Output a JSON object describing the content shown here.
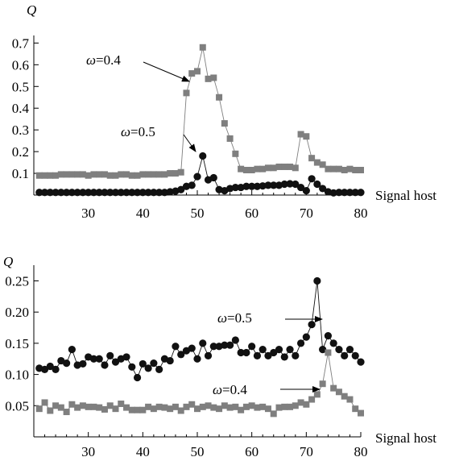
{
  "chart_data": [
    {
      "type": "line",
      "ylabel": "Q",
      "xlabel": "Signal host",
      "xlim": [
        20,
        80
      ],
      "ylim": [
        0,
        0.72
      ],
      "xticks": [
        30,
        40,
        50,
        60,
        70,
        80
      ],
      "yticks": [
        0.1,
        0.2,
        0.3,
        0.4,
        0.5,
        0.6,
        0.7
      ],
      "ytick_labels": [
        "0.1",
        "0.2",
        "0.3",
        "0.4",
        "0.5",
        "0.6",
        "0.7"
      ],
      "x": [
        21,
        22,
        23,
        24,
        25,
        26,
        27,
        28,
        29,
        30,
        31,
        32,
        33,
        34,
        35,
        36,
        37,
        38,
        39,
        40,
        41,
        42,
        43,
        44,
        45,
        46,
        47,
        48,
        49,
        50,
        51,
        52,
        53,
        54,
        55,
        56,
        57,
        58,
        59,
        60,
        61,
        62,
        63,
        64,
        65,
        66,
        67,
        68,
        69,
        70,
        71,
        72,
        73,
        74,
        75,
        76,
        77,
        78,
        79,
        80
      ],
      "series": [
        {
          "marker": "square",
          "color": "#7f7f7f",
          "values": [
            0.09,
            0.09,
            0.09,
            0.09,
            0.095,
            0.095,
            0.095,
            0.095,
            0.095,
            0.09,
            0.095,
            0.095,
            0.095,
            0.09,
            0.09,
            0.095,
            0.095,
            0.09,
            0.09,
            0.095,
            0.095,
            0.095,
            0.095,
            0.095,
            0.1,
            0.1,
            0.105,
            0.47,
            0.56,
            0.57,
            0.68,
            0.535,
            0.54,
            0.45,
            0.33,
            0.26,
            0.19,
            0.12,
            0.115,
            0.115,
            0.12,
            0.12,
            0.125,
            0.125,
            0.13,
            0.13,
            0.13,
            0.125,
            0.28,
            0.27,
            0.17,
            0.15,
            0.14,
            0.12,
            0.12,
            0.12,
            0.115,
            0.12,
            0.115,
            0.115
          ],
          "annotation": "ω=0.4"
        },
        {
          "marker": "circle",
          "color": "#111111",
          "values": [
            0.012,
            0.012,
            0.012,
            0.012,
            0.012,
            0.012,
            0.012,
            0.012,
            0.012,
            0.012,
            0.012,
            0.012,
            0.012,
            0.012,
            0.012,
            0.012,
            0.012,
            0.012,
            0.012,
            0.012,
            0.012,
            0.012,
            0.012,
            0.012,
            0.015,
            0.018,
            0.025,
            0.04,
            0.045,
            0.085,
            0.18,
            0.07,
            0.08,
            0.025,
            0.02,
            0.03,
            0.035,
            0.035,
            0.04,
            0.04,
            0.04,
            0.042,
            0.045,
            0.045,
            0.045,
            0.05,
            0.052,
            0.05,
            0.035,
            0.02,
            0.075,
            0.05,
            0.03,
            0.015,
            0.01,
            0.012,
            0.012,
            0.012,
            0.012,
            0.012
          ],
          "annotation": "ω=0.5"
        }
      ]
    },
    {
      "type": "line",
      "ylabel": "Q",
      "xlabel": "Signal host",
      "xlim": [
        20,
        80
      ],
      "ylim": [
        0,
        0.27
      ],
      "xticks": [
        30,
        40,
        50,
        60,
        70,
        80
      ],
      "yticks": [
        0.05,
        0.1,
        0.15,
        0.2,
        0.25
      ],
      "ytick_labels": [
        "0.05",
        "0.10",
        "0.15",
        "0.20",
        "0.25"
      ],
      "x": [
        21,
        22,
        23,
        24,
        25,
        26,
        27,
        28,
        29,
        30,
        31,
        32,
        33,
        34,
        35,
        36,
        37,
        38,
        39,
        40,
        41,
        42,
        43,
        44,
        45,
        46,
        47,
        48,
        49,
        50,
        51,
        52,
        53,
        54,
        55,
        56,
        57,
        58,
        59,
        60,
        61,
        62,
        63,
        64,
        65,
        66,
        67,
        68,
        69,
        70,
        71,
        72,
        73,
        74,
        75,
        76,
        77,
        78,
        79,
        80
      ],
      "series": [
        {
          "marker": "circle",
          "color": "#111111",
          "values": [
            0.11,
            0.108,
            0.113,
            0.108,
            0.122,
            0.118,
            0.14,
            0.115,
            0.117,
            0.128,
            0.125,
            0.125,
            0.115,
            0.13,
            0.12,
            0.125,
            0.128,
            0.112,
            0.095,
            0.117,
            0.11,
            0.118,
            0.108,
            0.125,
            0.122,
            0.145,
            0.132,
            0.138,
            0.142,
            0.125,
            0.15,
            0.13,
            0.145,
            0.145,
            0.147,
            0.147,
            0.155,
            0.135,
            0.135,
            0.145,
            0.13,
            0.14,
            0.13,
            0.135,
            0.14,
            0.128,
            0.14,
            0.13,
            0.15,
            0.16,
            0.18,
            0.25,
            0.14,
            0.162,
            0.15,
            0.14,
            0.13,
            0.14,
            0.13,
            0.12
          ],
          "annotation": "ω=0.5"
        },
        {
          "marker": "square",
          "color": "#7f7f7f",
          "values": [
            0.045,
            0.055,
            0.042,
            0.05,
            0.047,
            0.04,
            0.052,
            0.047,
            0.05,
            0.048,
            0.048,
            0.047,
            0.044,
            0.05,
            0.045,
            0.053,
            0.047,
            0.043,
            0.043,
            0.043,
            0.048,
            0.045,
            0.048,
            0.047,
            0.045,
            0.048,
            0.042,
            0.048,
            0.052,
            0.045,
            0.048,
            0.05,
            0.047,
            0.045,
            0.05,
            0.047,
            0.048,
            0.043,
            0.048,
            0.05,
            0.047,
            0.048,
            0.045,
            0.037,
            0.047,
            0.048,
            0.048,
            0.05,
            0.055,
            0.052,
            0.06,
            0.068,
            0.085,
            0.135,
            0.078,
            0.072,
            0.065,
            0.06,
            0.045,
            0.038
          ],
          "annotation": "ω=0.4"
        }
      ]
    }
  ],
  "annotations": {
    "top": {
      "upper": "ω=0.4",
      "lower": "ω=0.5"
    },
    "bottom": {
      "upper": "ω=0.5",
      "lower": "ω=0.4"
    }
  }
}
